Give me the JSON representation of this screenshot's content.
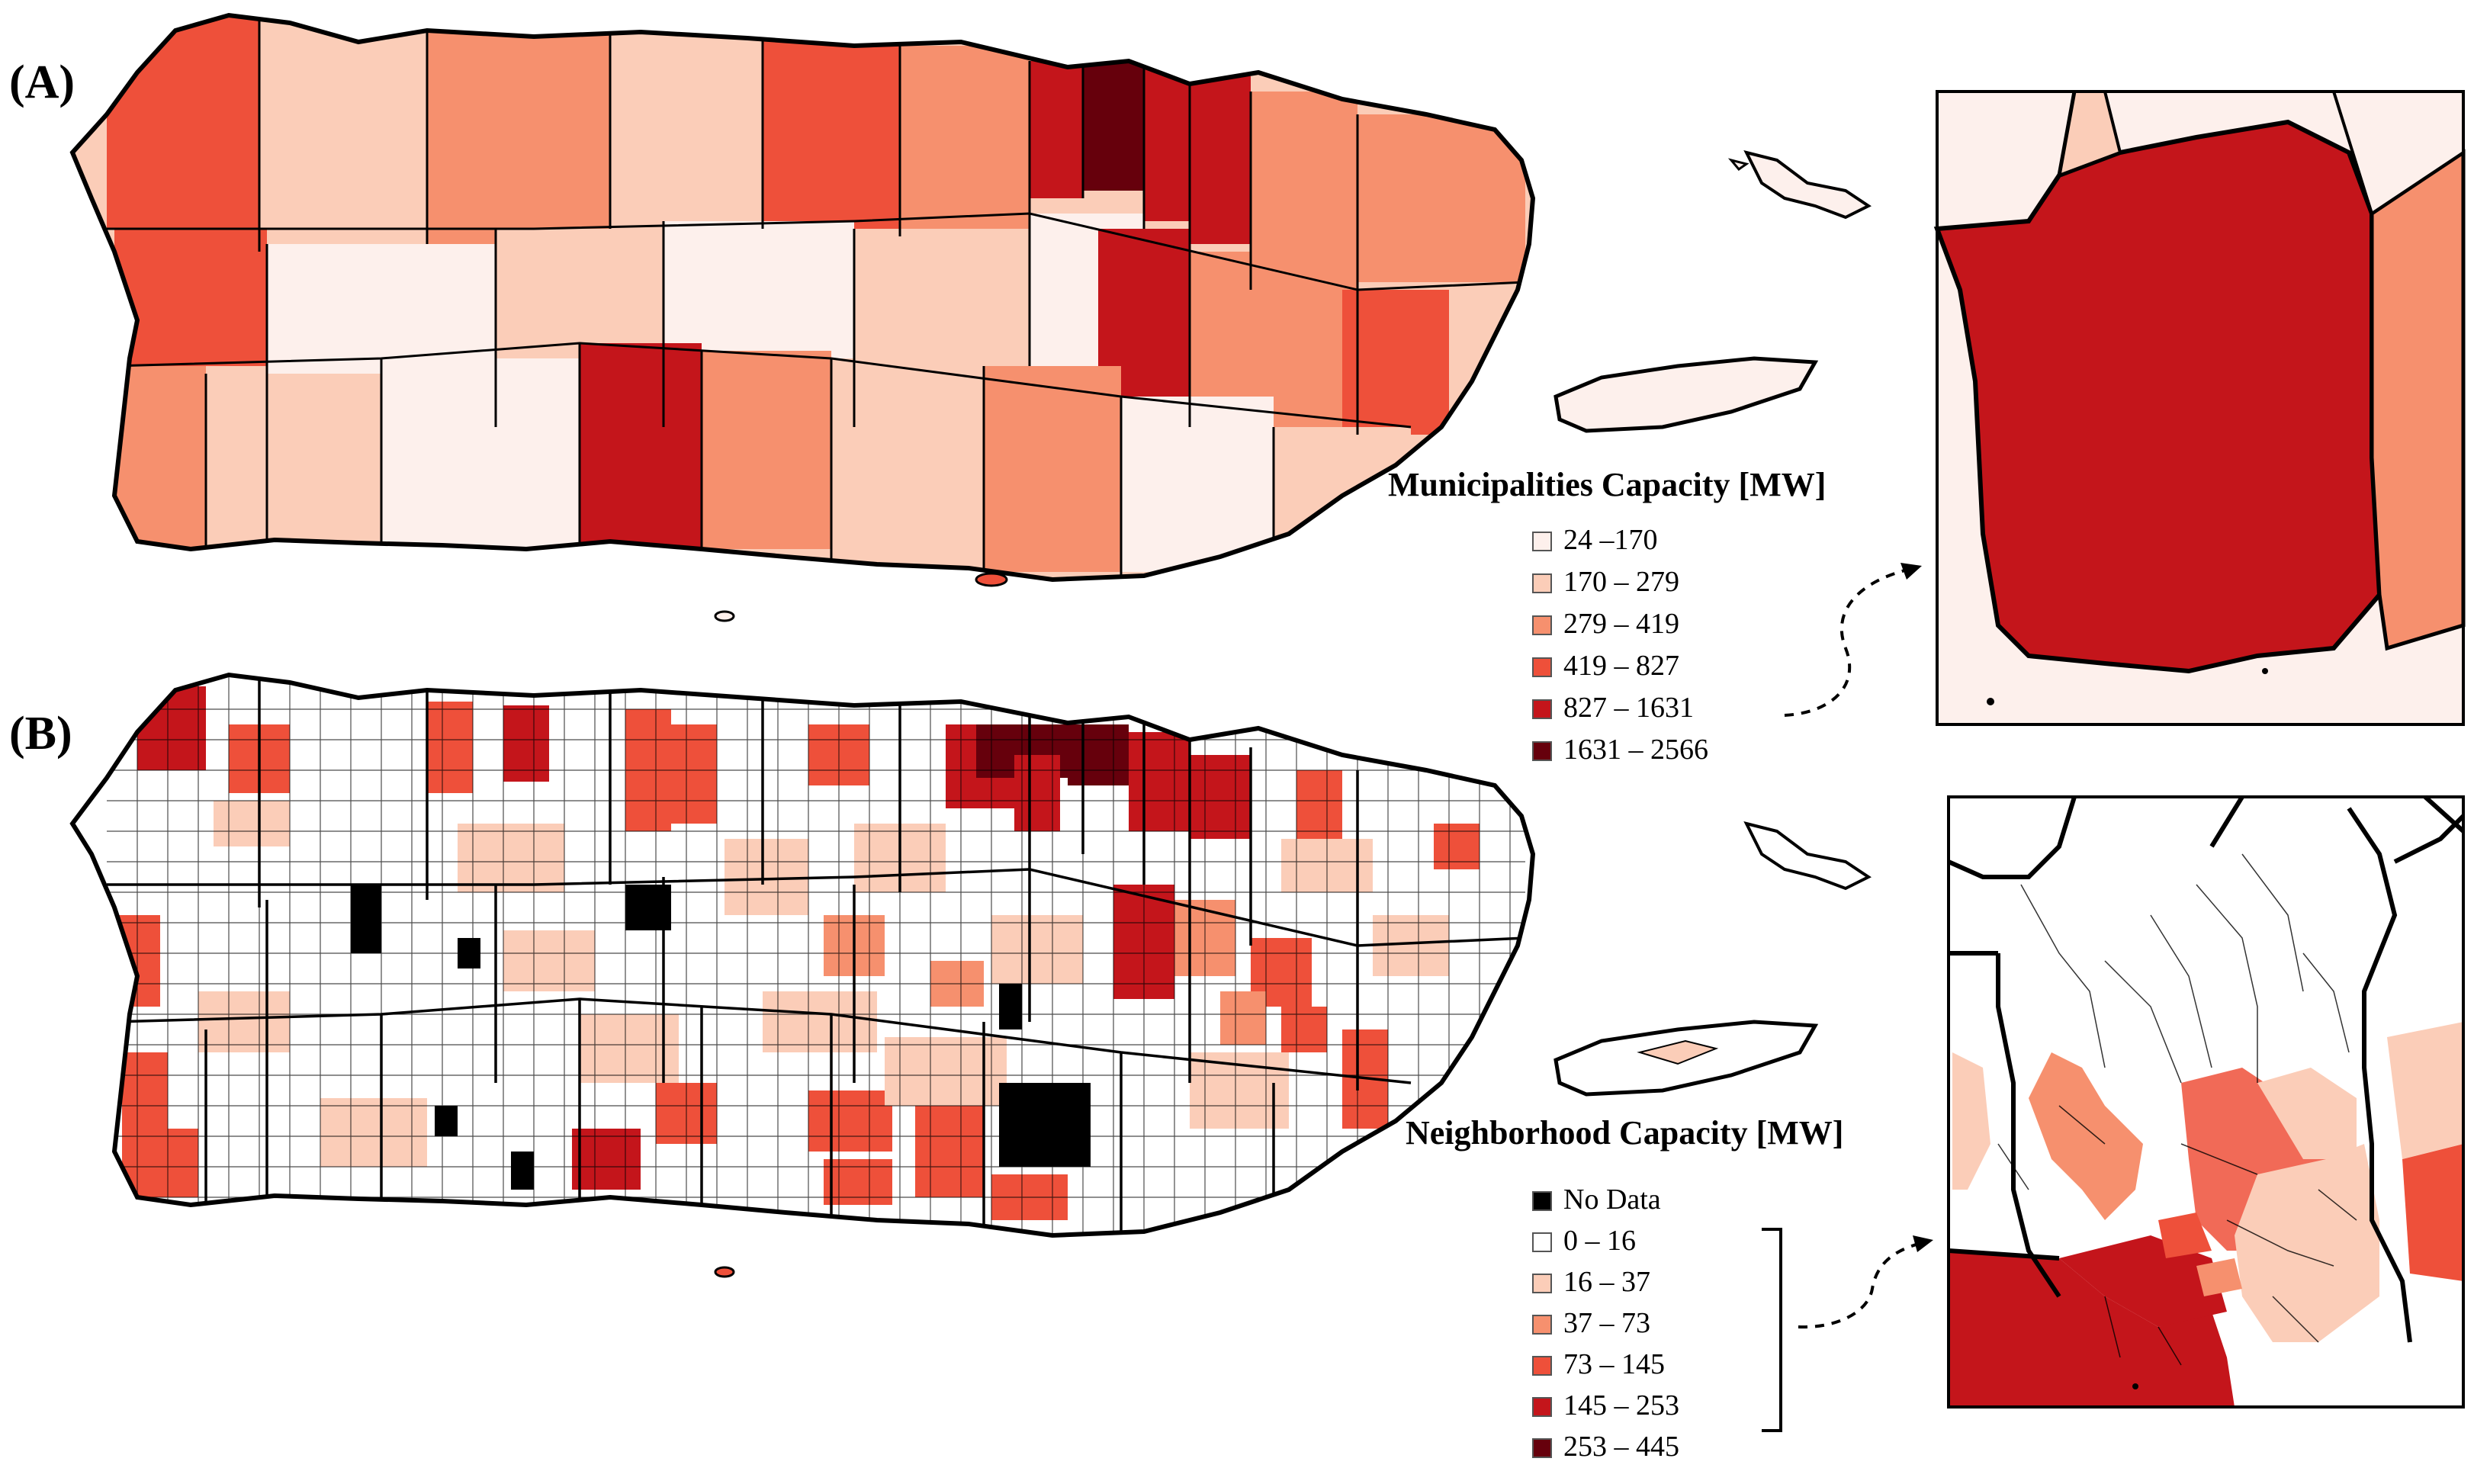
{
  "panels": [
    {
      "id": "A",
      "label": "(A)",
      "legend": {
        "title": "Municipalities Capacity [MW]",
        "classes": [
          {
            "label": "24 –170",
            "color": "#fdf0ec"
          },
          {
            "label": "170 – 279",
            "color": "#fbcdb8"
          },
          {
            "label": "279 – 419",
            "color": "#f6906e"
          },
          {
            "label": "419 – 827",
            "color": "#ee503a"
          },
          {
            "label": "827 – 1631",
            "color": "#c4151b"
          },
          {
            "label": "1631 – 2566",
            "color": "#66000c"
          }
        ]
      },
      "inset": {
        "fill_class": "827 – 1631"
      }
    },
    {
      "id": "B",
      "label": "(B)",
      "legend": {
        "title": "Neighborhood Capacity [MW]",
        "classes": [
          {
            "label": "No Data",
            "color": "#000000"
          },
          {
            "label": "0 – 16",
            "color": "#ffffff"
          },
          {
            "label": "16 – 37",
            "color": "#fbcdb8"
          },
          {
            "label": "37 – 73",
            "color": "#f6906e"
          },
          {
            "label": "73 – 145",
            "color": "#ee503a"
          },
          {
            "label": "145 – 253",
            "color": "#c4151b"
          },
          {
            "label": "253 – 445",
            "color": "#66000c"
          }
        ]
      }
    }
  ],
  "map_style": {
    "boundary_color": "#000000",
    "background": "#ffffff"
  }
}
